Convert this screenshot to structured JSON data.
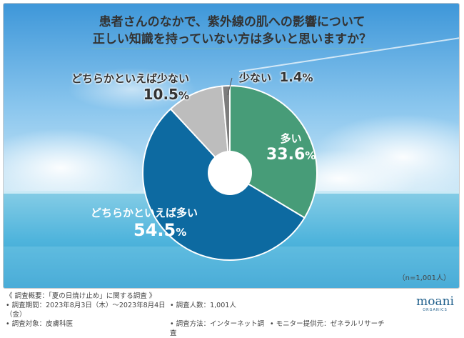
{
  "title_line1": "患者さんのなかで、紫外線の肌への影響について",
  "title_line2": "正しい知識を持っていない方は多いと思いますか？",
  "sample_note": "（n=1,001人）",
  "colors": {
    "series": [
      "#479c78",
      "#0d6aa1",
      "#bdbdbd",
      "#7d7d7d"
    ],
    "sky_top": "#4aa0dd",
    "sea": "#5ebedf"
  },
  "chart_data": {
    "type": "pie",
    "donut": true,
    "start": "12 o'clock, clockwise",
    "slices": [
      {
        "label": "多い",
        "value": 33.6,
        "value_text": "33.6",
        "color": "#479c78",
        "label_style": "white"
      },
      {
        "label": "どちらかといえば多い",
        "value": 54.5,
        "value_text": "54.5",
        "color": "#0d6aa1",
        "label_style": "white"
      },
      {
        "label": "どちらかといえば少ない",
        "value": 10.5,
        "value_text": "10.5",
        "color": "#bdbdbd",
        "label_style": "dark"
      },
      {
        "label": "少ない",
        "value": 1.4,
        "value_text": "1.4",
        "color": "#7d7d7d",
        "label_style": "dark"
      }
    ],
    "unit": "%"
  },
  "footer": {
    "overview": "《 調査概要：「夏の日焼け止め」に関する調査 》",
    "period": "• 調査期間：2023年8月3日（木）～2023年8月4日（金）",
    "respondents": "• 調査人数：1,001人",
    "target": "• 調査対象：皮膚科医",
    "method": "• 調査方法：インターネット調査",
    "provider": "• モニター提供元：ゼネラルリサーチ"
  },
  "logo": {
    "word": "moani",
    "sub": "ORGANICS"
  }
}
